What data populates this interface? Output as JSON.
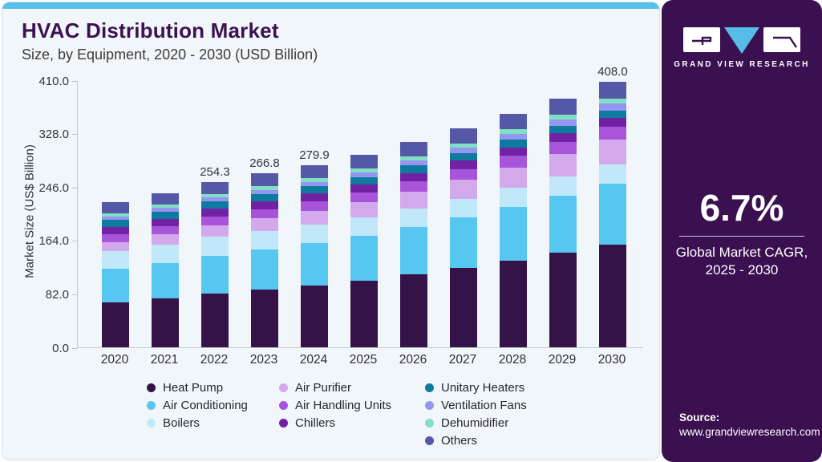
{
  "header": {
    "title": "HVAC Distribution Market",
    "subtitle": "Size, by Equipment, 2020 - 2030 (USD Billion)"
  },
  "sidebar": {
    "brand": "GRAND VIEW RESEARCH",
    "cagr_value": "6.7%",
    "cagr_caption_line1": "Global Market CAGR,",
    "cagr_caption_line2": "2025 - 2030",
    "source_label": "Source:",
    "source_url": "www.grandviewresearch.com",
    "colors": {
      "background": "#3A1051",
      "accent_strip": "#55C1E9",
      "logo_triangle": "#55BDE8"
    }
  },
  "chart_data": {
    "type": "bar",
    "stacked": true,
    "title": "HVAC Distribution Market Size, by Equipment, 2020 - 2030 (USD Billion)",
    "xlabel": "",
    "ylabel": "Market Size (US$ Billion)",
    "ylim": [
      0,
      410
    ],
    "ytick_labels": [
      "0.0",
      "82.0",
      "164.0",
      "246.0",
      "328.0",
      "410.0"
    ],
    "grid": false,
    "legend_position": "bottom",
    "categories": [
      "2020",
      "2021",
      "2022",
      "2023",
      "2024",
      "2025",
      "2026",
      "2027",
      "2028",
      "2029",
      "2030"
    ],
    "bar_total_labels": [
      "",
      "",
      "254.3",
      "266.8",
      "279.9",
      "",
      "",
      "",
      "",
      "",
      "408.0"
    ],
    "totals": [
      222.9,
      236.9,
      254.3,
      266.8,
      279.9,
      295.1,
      314.8,
      335.9,
      358.4,
      382.4,
      408.0
    ],
    "series": [
      {
        "name": "Heat Pump",
        "color": "#351349",
        "values": [
          68.5,
          74.7,
          82.1,
          88.3,
          94.9,
          102.4,
          111.8,
          121.9,
          133.0,
          144.9,
          157.9
        ]
      },
      {
        "name": "Air Conditioning",
        "color": "#57C7F2",
        "values": [
          51.7,
          54.9,
          58.9,
          61.7,
          64.7,
          68.2,
          72.7,
          77.5,
          82.6,
          88.0,
          93.8
        ]
      },
      {
        "name": "Boilers",
        "color": "#C0E8F8",
        "values": [
          27.7,
          28.1,
          28.8,
          28.8,
          28.7,
          28.6,
          28.8,
          29.0,
          29.0,
          28.8,
          28.6
        ]
      },
      {
        "name": "Air Purifier",
        "color": "#D3A9EC",
        "values": [
          14.0,
          15.7,
          17.6,
          19.4,
          21.2,
          23.3,
          25.9,
          28.7,
          31.8,
          35.1,
          38.8
        ]
      },
      {
        "name": "Air Handling Units",
        "color": "#A754DA",
        "values": [
          12.3,
          12.9,
          13.6,
          14.1,
          14.6,
          15.2,
          16.0,
          16.8,
          17.7,
          18.6,
          19.6
        ]
      },
      {
        "name": "Chillers",
        "color": "#7122A4",
        "values": [
          10.9,
          11.2,
          11.6,
          11.8,
          11.9,
          12.1,
          12.4,
          12.7,
          13.0,
          13.2,
          13.5
        ]
      },
      {
        "name": "Unitary Heaters",
        "color": "#0F7AA0",
        "values": [
          10.9,
          11.1,
          11.4,
          11.4,
          11.4,
          11.4,
          11.5,
          11.5,
          11.5,
          11.5,
          11.4
        ]
      },
      {
        "name": "Ventilation Fans",
        "color": "#9595F2",
        "values": [
          5.1,
          5.5,
          6.0,
          6.4,
          6.8,
          7.2,
          7.8,
          8.4,
          9.1,
          9.8,
          10.6
        ]
      },
      {
        "name": "Dehumidifier",
        "color": "#7FE0C3",
        "values": [
          5.1,
          5.3,
          5.6,
          5.7,
          5.9,
          6.0,
          6.3,
          6.5,
          6.8,
          7.1,
          7.3
        ]
      },
      {
        "name": "Others",
        "color": "#5558A6",
        "values": [
          16.7,
          17.5,
          18.6,
          19.2,
          19.9,
          20.7,
          21.7,
          22.8,
          24.0,
          25.2,
          26.5
        ]
      }
    ],
    "legend_columns": [
      [
        0,
        1,
        2
      ],
      [
        3,
        4,
        5
      ],
      [
        6,
        7,
        8,
        9
      ]
    ],
    "legend_column_lefts": [
      180,
      345,
      527
    ]
  }
}
